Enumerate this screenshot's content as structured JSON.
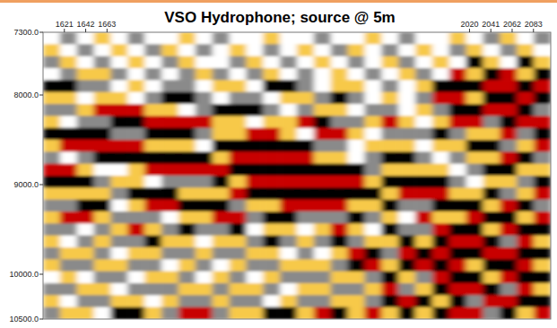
{
  "chart_data": {
    "type": "heatmap",
    "title": "VSO Hydrophone; source @ 5m",
    "xlim": [
      1600,
      2100
    ],
    "xticks": [
      1621,
      1642,
      1663,
      2020,
      2041,
      2062,
      2083
    ],
    "ylim": [
      7300,
      10500
    ],
    "yticks": [
      {
        "value": 7300,
        "label": "7300.0"
      },
      {
        "value": 8000,
        "label": "8000.0"
      },
      {
        "value": 9000,
        "label": "9000.0"
      },
      {
        "value": 10000,
        "label": "10000.0"
      },
      {
        "value": 10500,
        "label": "10500.0"
      }
    ],
    "zlim": [
      -2,
      2
    ],
    "cells": [
      [
        0,
        1,
        0,
        -1,
        0,
        1,
        0,
        0,
        -1,
        0,
        1,
        0,
        0,
        -1,
        0,
        0,
        1,
        0,
        0,
        -1,
        0,
        1,
        0,
        0,
        -1,
        0,
        1,
        -1,
        0,
        1
      ],
      [
        -1,
        0,
        1,
        0,
        -1,
        0,
        1,
        -1,
        0,
        1,
        0,
        -1,
        0,
        1,
        0,
        -1,
        0,
        1,
        -1,
        0,
        1,
        0,
        -1,
        0,
        1,
        -1,
        0,
        1,
        -1,
        0
      ],
      [
        1,
        -1,
        0,
        1,
        0,
        -1,
        0,
        1,
        -1,
        0,
        0,
        1,
        -1,
        0,
        1,
        0,
        -1,
        0,
        1,
        0,
        -1,
        1,
        0,
        -1,
        0,
        2,
        -1,
        0,
        2,
        -1
      ],
      [
        0,
        1,
        -1,
        -1,
        1,
        0,
        1,
        0,
        1,
        -1,
        1,
        0,
        1,
        -1,
        0,
        1,
        0,
        -1,
        0,
        1,
        0,
        -1,
        1,
        0,
        -2,
        -1,
        2,
        -2,
        -1,
        2
      ],
      [
        2,
        2,
        1,
        1,
        0,
        -1,
        0,
        1,
        1,
        0,
        -1,
        -1,
        0,
        2,
        2,
        1,
        0,
        -1,
        -1,
        0,
        1,
        0,
        -1,
        2,
        2,
        2,
        -2,
        -2,
        2,
        -2
      ],
      [
        -1,
        -1,
        0,
        -1,
        -1,
        0,
        1,
        2,
        2,
        1,
        0,
        1,
        1,
        0,
        -1,
        -1,
        1,
        2,
        1,
        0,
        -1,
        0,
        1,
        -2,
        -2,
        -1,
        2,
        2,
        -2,
        2
      ],
      [
        1,
        1,
        -1,
        -2,
        -2,
        -2,
        -1,
        -1,
        0,
        1,
        2,
        2,
        2,
        1,
        0,
        1,
        -1,
        -1,
        0,
        1,
        1,
        0,
        -1,
        1,
        2,
        2,
        -2,
        -2,
        2,
        1
      ],
      [
        -1,
        0,
        1,
        1,
        2,
        2,
        -2,
        -2,
        -2,
        -2,
        -1,
        -1,
        0,
        -1,
        -1,
        -2,
        2,
        1,
        1,
        -1,
        -2,
        -1,
        0,
        -1,
        -2,
        -2,
        1,
        2,
        -2,
        -2
      ],
      [
        2,
        2,
        2,
        2,
        1,
        1,
        2,
        2,
        2,
        1,
        -1,
        -1,
        -2,
        -2,
        -1,
        0,
        -2,
        -2,
        -1,
        0,
        1,
        1,
        1,
        2,
        1,
        -1,
        -1,
        -2,
        1,
        2
      ],
      [
        -1,
        -2,
        -2,
        -2,
        -2,
        -2,
        -1,
        -1,
        -1,
        0,
        2,
        2,
        2,
        2,
        2,
        2,
        1,
        1,
        0,
        -1,
        -1,
        -1,
        0,
        -1,
        -1,
        2,
        2,
        1,
        -1,
        -2
      ],
      [
        1,
        0,
        1,
        2,
        2,
        2,
        2,
        2,
        2,
        2,
        -1,
        -2,
        -2,
        -2,
        -2,
        -2,
        -1,
        -1,
        0,
        1,
        2,
        2,
        1,
        0,
        1,
        -1,
        -1,
        -2,
        2,
        1
      ],
      [
        -2,
        -2,
        -1,
        0,
        0,
        -1,
        -2,
        -2,
        -2,
        -2,
        -2,
        2,
        2,
        2,
        2,
        2,
        2,
        2,
        2,
        1,
        -1,
        -1,
        -1,
        -1,
        0,
        1,
        2,
        2,
        -1,
        -1
      ],
      [
        2,
        2,
        2,
        1,
        -1,
        -1,
        0,
        1,
        1,
        1,
        2,
        -1,
        -2,
        -2,
        -2,
        -2,
        -2,
        -2,
        -2,
        -1,
        2,
        2,
        2,
        2,
        1,
        0,
        -1,
        -1,
        1,
        2
      ],
      [
        -1,
        -1,
        -1,
        -1,
        1,
        2,
        2,
        2,
        -1,
        -1,
        -1,
        -2,
        2,
        2,
        2,
        2,
        2,
        2,
        2,
        2,
        -1,
        -2,
        -2,
        -2,
        -1,
        -1,
        2,
        1,
        -1,
        -2
      ],
      [
        1,
        1,
        2,
        2,
        0,
        -1,
        -2,
        -2,
        2,
        2,
        2,
        1,
        -1,
        -1,
        -2,
        -2,
        -2,
        -2,
        -1,
        -1,
        2,
        1,
        1,
        2,
        2,
        2,
        -1,
        -2,
        2,
        1
      ],
      [
        -1,
        -2,
        -2,
        -1,
        1,
        1,
        1,
        0,
        -1,
        -1,
        -2,
        -2,
        1,
        2,
        2,
        1,
        1,
        1,
        2,
        1,
        -1,
        0,
        -2,
        -1,
        -1,
        -2,
        2,
        2,
        -1,
        -2
      ],
      [
        1,
        1,
        0,
        1,
        -1,
        -2,
        -1,
        1,
        2,
        1,
        1,
        2,
        0,
        -1,
        -1,
        0,
        -1,
        -2,
        -1,
        0,
        2,
        1,
        1,
        -2,
        2,
        2,
        -1,
        -2,
        2,
        2
      ],
      [
        -1,
        0,
        1,
        -1,
        1,
        1,
        2,
        -1,
        -1,
        0,
        -1,
        -1,
        1,
        2,
        1,
        -1,
        1,
        2,
        1,
        -1,
        -1,
        2,
        -1,
        2,
        -2,
        -2,
        2,
        1,
        -2,
        -1
      ],
      [
        1,
        -1,
        -1,
        1,
        0,
        -1,
        -1,
        1,
        1,
        -1,
        1,
        1,
        -1,
        -1,
        0,
        1,
        0,
        -1,
        -2,
        2,
        1,
        -2,
        2,
        -2,
        2,
        2,
        -2,
        -2,
        2,
        2
      ],
      [
        -1,
        1,
        1,
        -1,
        -1,
        1,
        1,
        0,
        -1,
        1,
        0,
        -1,
        1,
        1,
        -1,
        -1,
        -1,
        1,
        2,
        -2,
        -1,
        2,
        -2,
        2,
        -2,
        -1,
        2,
        2,
        -2,
        -1
      ],
      [
        0,
        -1,
        0,
        1,
        1,
        0,
        -1,
        -1,
        1,
        0,
        -1,
        1,
        0,
        -1,
        1,
        1,
        1,
        -1,
        -1,
        1,
        2,
        -1,
        1,
        -2,
        2,
        2,
        -1,
        -2,
        2,
        2
      ],
      [
        1,
        1,
        -1,
        -1,
        0,
        1,
        1,
        1,
        -1,
        -1,
        1,
        -1,
        -1,
        1,
        0,
        -1,
        -1,
        1,
        1,
        -1,
        -2,
        1,
        -1,
        2,
        -2,
        -2,
        2,
        1,
        -2,
        -1
      ],
      [
        -1,
        0,
        1,
        1,
        -1,
        -1,
        0,
        -1,
        1,
        1,
        -1,
        1,
        1,
        0,
        -1,
        1,
        1,
        -1,
        -1,
        1,
        2,
        -2,
        2,
        -1,
        2,
        1,
        -2,
        -2,
        2,
        2
      ],
      [
        1,
        -1,
        -1,
        0,
        2,
        2,
        -1,
        1,
        -2,
        -2,
        1,
        -1,
        -1,
        2,
        2,
        -1,
        -2,
        2,
        -1,
        -2,
        -1,
        2,
        -1,
        2,
        -2,
        -2,
        1,
        2,
        -1,
        -2
      ]
    ]
  }
}
